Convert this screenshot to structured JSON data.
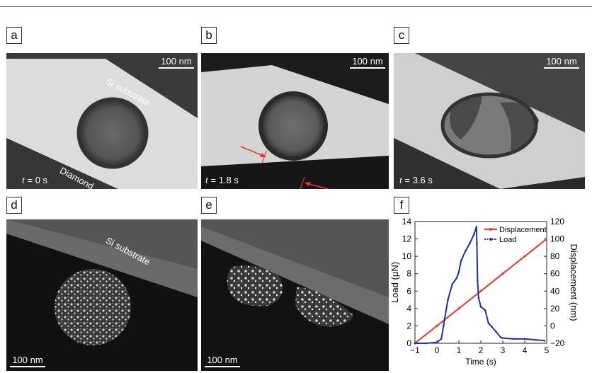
{
  "panels": {
    "a": {
      "label": "a",
      "scale_bar": "100 nm",
      "time_prefix": "t",
      "time_value": " = 0 s",
      "annotation_top": "Si substrate",
      "annotation_bottom": "Diamond"
    },
    "b": {
      "label": "b",
      "scale_bar": "100 nm",
      "time_prefix": "t",
      "time_value": " = 1.8 s"
    },
    "c": {
      "label": "c",
      "scale_bar": "100 nm",
      "time_prefix": "t",
      "time_value": " = 3.6 s"
    },
    "d": {
      "label": "d",
      "scale_bar": "100 nm",
      "annotation_top": "Si substrate"
    },
    "e": {
      "label": "e",
      "scale_bar": "100 nm"
    },
    "f": {
      "label": "f"
    }
  },
  "colors": {
    "displacement": "#e8352a",
    "load": "#1f2fa6",
    "arrow": "#e8352a"
  },
  "chart_data": {
    "type": "line",
    "xlabel": "Time (s)",
    "ylabel_left": "Load (μN)",
    "ylabel_right": "Displacement (nm)",
    "xlim": [
      -1,
      5
    ],
    "ylim_left": [
      0,
      14
    ],
    "ylim_right": [
      -20,
      120
    ],
    "x_ticks": [
      -1,
      0,
      1,
      2,
      3,
      4,
      5
    ],
    "y_ticks_left": [
      0,
      2,
      4,
      6,
      8,
      10,
      12,
      14
    ],
    "y_ticks_right": [
      -20,
      0,
      20,
      40,
      60,
      80,
      100,
      120
    ],
    "legend": [
      "Displacement",
      "Load"
    ],
    "legend_placement": "top-right",
    "series": [
      {
        "name": "Displacement",
        "axis": "right",
        "x": [
          -1,
          0,
          1,
          2,
          3,
          4,
          5
        ],
        "y": [
          -20,
          0,
          20,
          40,
          60,
          80,
          100
        ]
      },
      {
        "name": "Load",
        "axis": "left",
        "x": [
          -1,
          -0.5,
          0,
          0.2,
          0.3,
          0.5,
          0.7,
          0.9,
          1.0,
          1.1,
          1.3,
          1.5,
          1.7,
          1.8,
          1.82,
          1.85,
          1.9,
          2.0,
          2.2,
          2.35,
          2.5,
          2.7,
          2.9,
          3.0,
          3.5,
          4.0,
          4.5,
          4.9
        ],
        "y": [
          0,
          0,
          0.1,
          0.5,
          2.0,
          5.0,
          6.8,
          7.5,
          8.2,
          9.5,
          10.6,
          11.5,
          12.6,
          13.4,
          11.5,
          7.2,
          5.2,
          4.2,
          3.8,
          2.3,
          1.9,
          1.3,
          0.7,
          0.6,
          0.5,
          0.5,
          0.4,
          0.3
        ]
      }
    ]
  }
}
